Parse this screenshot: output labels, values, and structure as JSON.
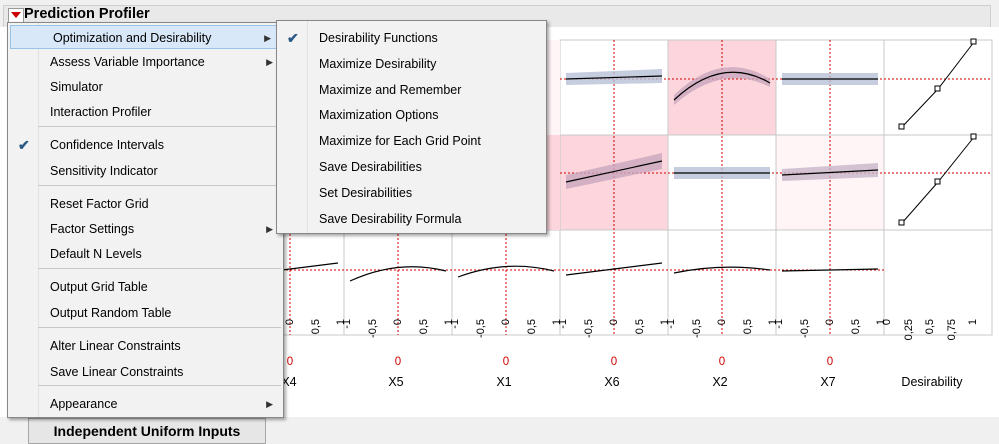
{
  "profiler": {
    "title": "Prediction Profiler",
    "bottom_button": "Independent Uniform Inputs",
    "factors": [
      "X4",
      "X5",
      "X1",
      "X6",
      "X2",
      "X7",
      "Desirability"
    ],
    "tick_labels": [
      "-1",
      "-0,5",
      "0",
      "0,5",
      "1"
    ],
    "desirability_ticks": [
      "0",
      "0,25",
      "0,5",
      "0,75",
      "1"
    ],
    "current_value": "0"
  },
  "main_menu": {
    "items": [
      {
        "label": "Optimization and Desirability",
        "submenu": true
      },
      {
        "label": "Assess Variable Importance",
        "submenu": true
      },
      {
        "label": "Simulator"
      },
      {
        "label": "Interaction Profiler"
      },
      {
        "label": "Confidence Intervals",
        "checked": true
      },
      {
        "label": "Sensitivity Indicator"
      },
      {
        "label": "Reset Factor Grid"
      },
      {
        "label": "Factor Settings",
        "submenu": true
      },
      {
        "label": "Default N Levels"
      },
      {
        "label": "Output Grid Table"
      },
      {
        "label": "Output Random Table"
      },
      {
        "label": "Alter Linear Constraints"
      },
      {
        "label": "Save Linear Constraints"
      },
      {
        "label": "Appearance",
        "submenu": true
      }
    ]
  },
  "sub_menu": {
    "items": [
      {
        "label": "Desirability Functions",
        "checked": true
      },
      {
        "label": "Maximize Desirability"
      },
      {
        "label": "Maximize and Remember"
      },
      {
        "label": "Maximization Options"
      },
      {
        "label": "Maximize for Each Grid Point"
      },
      {
        "label": "Save Desirabilities"
      },
      {
        "label": "Set Desirabilities"
      },
      {
        "label": "Save Desirability Formula"
      }
    ]
  },
  "colors": {
    "accent_red": "#cc0000",
    "highlight": "#d8e8f8",
    "check": "#2b5a87",
    "pink_cell": "#ffd3dc",
    "band": "#b7c0d6"
  }
}
